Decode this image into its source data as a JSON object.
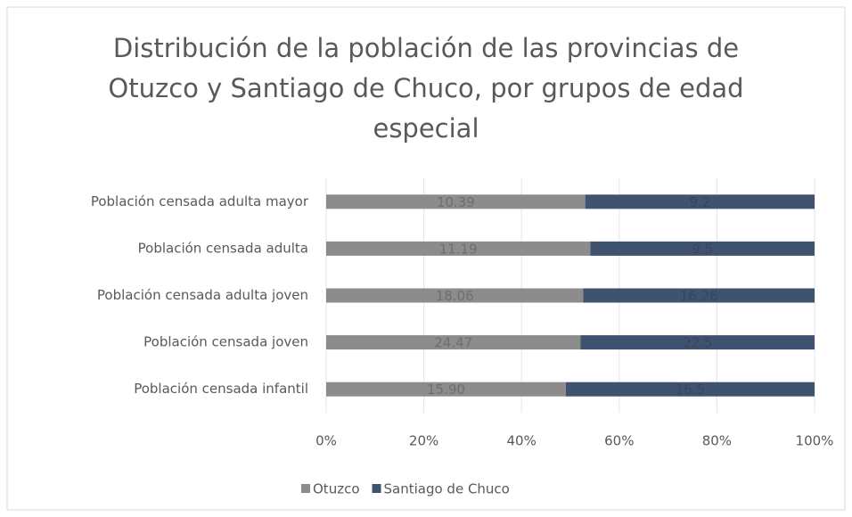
{
  "chart_data": {
    "type": "bar100h",
    "title": "Distribución de la población de las provincias de Otuzco y Santiago de Chuco, por grupos de edad especial",
    "categories": [
      "Población censada adulta mayor",
      "Población censada adulta",
      "Población censada adulta joven",
      "Población censada joven",
      "Población censada infantil"
    ],
    "series": [
      {
        "name": "Otuzco",
        "color": "#8c8c8c",
        "values": [
          10.39,
          11.19,
          18.06,
          24.47,
          15.9
        ],
        "value_labels": [
          "10.39",
          "11.19",
          "18.06",
          "24.47",
          "15.90"
        ]
      },
      {
        "name": "Santiago de Chuco",
        "color": "#3f5270",
        "values": [
          9.2,
          9.5,
          16.26,
          22.5,
          16.5
        ]
      }
    ],
    "xlim": [
      0,
      100
    ],
    "xticks": [
      {
        "value": 0,
        "label": "0%"
      },
      {
        "value": 20,
        "label": "20%"
      },
      {
        "value": 40,
        "label": "40%"
      },
      {
        "value": 60,
        "label": "60%"
      },
      {
        "value": 80,
        "label": "80%"
      },
      {
        "value": 100,
        "label": "100%"
      }
    ],
    "grid": true,
    "legend": "bottom"
  }
}
